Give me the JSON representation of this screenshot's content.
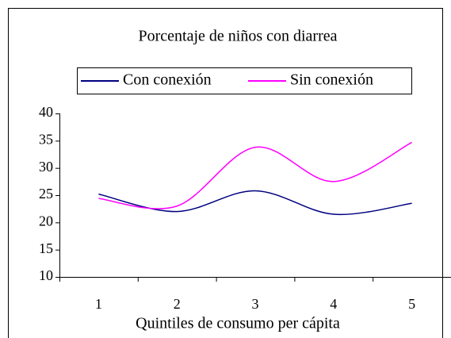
{
  "chart_data": {
    "type": "line",
    "title": "Porcentaje de niños con diarrea",
    "xlabel": "Quintiles de consumo per cápita",
    "categories": [
      "1",
      "2",
      "3",
      "4",
      "5"
    ],
    "series": [
      {
        "name": "Con conexión",
        "color": "#000080",
        "values": [
          25.2,
          22,
          25.8,
          21.5,
          23.5
        ]
      },
      {
        "name": "Sin conexión",
        "color": "#ff00ff",
        "values": [
          24.4,
          23,
          33.8,
          27.5,
          34.7
        ]
      }
    ],
    "ylim": [
      10,
      40
    ],
    "yticks": [
      10,
      15,
      20,
      25,
      30,
      35,
      40
    ],
    "grid": false,
    "smooth": true,
    "legend": "top"
  }
}
